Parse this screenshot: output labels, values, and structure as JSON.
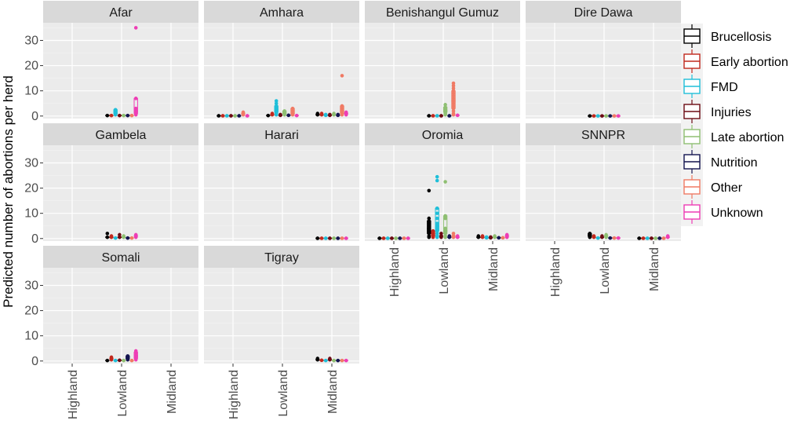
{
  "chart_data": {
    "type": "boxplot-facet",
    "ylabel": "Predicted number of abortions per herd",
    "xlabel": "",
    "ylim": [
      -1,
      37
    ],
    "y_ticks": [
      0,
      10,
      20,
      30
    ],
    "categories": [
      "Highland",
      "Lowland",
      "Midland"
    ],
    "legend": {
      "placement": "right",
      "entries": [
        {
          "name": "Brucellosis",
          "color": "#000000"
        },
        {
          "name": "Early abortion",
          "color": "#c0281d"
        },
        {
          "name": "FMD",
          "color": "#1fbfd9"
        },
        {
          "name": "Injuries",
          "color": "#6b0a13"
        },
        {
          "name": "Late abortion",
          "color": "#8fbf72"
        },
        {
          "name": "Nutrition",
          "color": "#13144f"
        },
        {
          "name": "Other",
          "color": "#f07a64"
        },
        {
          "name": "Unknown",
          "color": "#ee3db5"
        }
      ]
    },
    "panels": [
      {
        "name": "Afar",
        "data": {
          "Lowland": [
            [
              0.2
            ],
            [
              0.2
            ],
            [
              0.5,
              1.0,
              1.5,
              2.5
            ],
            [
              0.2
            ],
            [
              0.2
            ],
            [
              0.2
            ],
            [
              0.2
            ],
            [
              0.5,
              1,
              2,
              3,
              7,
              35
            ]
          ]
        }
      },
      {
        "name": "Amhara",
        "data": {
          "Highland": [
            [
              0.1
            ],
            [
              0.1
            ],
            [
              0.1
            ],
            [
              0.1
            ],
            [
              0.1
            ],
            [
              0.1
            ],
            [
              0.5,
              1.0,
              1.5
            ],
            [
              0.1
            ]
          ],
          "Lowland": [
            [
              0.2
            ],
            [
              0.5,
              1.0
            ],
            [
              0.5,
              1,
              1.5,
              2,
              2.5,
              3,
              3.5,
              4,
              5,
              6
            ],
            [
              0.3,
              0.6
            ],
            [
              0.5,
              1,
              1.5,
              2
            ],
            [
              0.3
            ],
            [
              0.5,
              1,
              2,
              3
            ],
            [
              0.2
            ]
          ],
          "Midland": [
            [
              0.5,
              1.0
            ],
            [
              0.5,
              1.0
            ],
            [
              0.3,
              0.6
            ],
            [
              0.3,
              0.6
            ],
            [
              0.5,
              1.0
            ],
            [
              0.3,
              0.6
            ],
            [
              0.5,
              1,
              2,
              3,
              4,
              16
            ],
            [
              0.5,
              1,
              1.5
            ]
          ]
        }
      },
      {
        "name": "Benishangul Gumuz",
        "data": {
          "Lowland": [
            [
              0.1
            ],
            [
              0.1
            ],
            [
              0.1
            ],
            [
              0.1
            ],
            [
              0.5,
              1,
              1.5,
              2,
              2.5,
              3,
              3.5,
              4.5
            ],
            [
              0.1
            ],
            [
              0.5,
              1,
              2,
              3,
              4,
              5,
              6,
              7,
              8,
              9,
              10,
              11,
              12,
              13
            ],
            [
              0.3
            ]
          ]
        }
      },
      {
        "name": "Dire Dawa",
        "data": {
          "Lowland": [
            [
              0.05
            ],
            [
              0.05
            ],
            [
              0.05
            ],
            [
              0.05
            ],
            [
              0.05
            ],
            [
              0.05
            ],
            [
              0.05
            ],
            [
              0.05
            ]
          ]
        }
      },
      {
        "name": "Gambela",
        "data": {
          "Lowland": [
            [
              0.5,
              2.0
            ],
            [
              0.5,
              1.0
            ],
            [
              0.2
            ],
            [
              0.5,
              1.5
            ],
            [
              0.5,
              1.0
            ],
            [
              0.2
            ],
            [
              0.2
            ],
            [
              0.5,
              1.0,
              1.5
            ]
          ]
        }
      },
      {
        "name": "Harari",
        "data": {
          "Midland": [
            [
              0.1
            ],
            [
              0.1
            ],
            [
              0.1
            ],
            [
              0.1
            ],
            [
              0.1
            ],
            [
              0.1
            ],
            [
              0.1
            ],
            [
              0.1
            ]
          ]
        }
      },
      {
        "name": "Oromia",
        "data": {
          "Highland": [
            [
              0.1
            ],
            [
              0.1
            ],
            [
              0.1
            ],
            [
              0.1
            ],
            [
              0.1
            ],
            [
              0.1
            ],
            [
              0.1
            ],
            [
              0.1
            ]
          ],
          "Lowland": [
            [
              0.5,
              1,
              2,
              3,
              4,
              5,
              6,
              7,
              8,
              19
            ],
            [
              0.5,
              1,
              2,
              3
            ],
            [
              0.5,
              1,
              2,
              3,
              4,
              5,
              6,
              8,
              10,
              12,
              23,
              24.5
            ],
            [
              0.5,
              1,
              2
            ],
            [
              0.5,
              1,
              2,
              3,
              4,
              8,
              9,
              22.5
            ],
            [
              0.5,
              1
            ],
            [
              0.5,
              1,
              2
            ],
            [
              0.5,
              1
            ]
          ],
          "Midland": [
            [
              0.5,
              1.0
            ],
            [
              0.5,
              1.0
            ],
            [
              0.3,
              0.6
            ],
            [
              0.3,
              0.6
            ],
            [
              0.5,
              1.0
            ],
            [
              0.3
            ],
            [
              0.3
            ],
            [
              0.5,
              1.0,
              1.5
            ]
          ]
        }
      },
      {
        "name": "SNNPR",
        "data": {
          "Lowland": [
            [
              0.5,
              1.0,
              1.5,
              2.0
            ],
            [
              0.5,
              1.0
            ],
            [
              0.2
            ],
            [
              0.5,
              1.0
            ],
            [
              0.5,
              1.0,
              1.5
            ],
            [
              0.2
            ],
            [
              0.2
            ],
            [
              0.2
            ]
          ],
          "Midland": [
            [
              0.1
            ],
            [
              0.1
            ],
            [
              0.1
            ],
            [
              0.1
            ],
            [
              0.1
            ],
            [
              0.1
            ],
            [
              0.1
            ],
            [
              0.5,
              1.0
            ]
          ]
        }
      },
      {
        "name": "Somali",
        "data": {
          "Lowland": [
            [
              0.2
            ],
            [
              0.5,
              1.0,
              1.5
            ],
            [
              0.2
            ],
            [
              0.3
            ],
            [
              0.2
            ],
            [
              0.5,
              1.0,
              1.5,
              2.0
            ],
            [
              0.2
            ],
            [
              0.5,
              1,
              2,
              3,
              3.5,
              4
            ]
          ]
        }
      },
      {
        "name": "Tigray",
        "data": {
          "Midland": [
            [
              0.5,
              1.0
            ],
            [
              0.3
            ],
            [
              0.2
            ],
            [
              0.5,
              1.0
            ],
            [
              0.2
            ],
            [
              0.2
            ],
            [
              0.2
            ],
            [
              0.2
            ]
          ]
        }
      }
    ]
  }
}
